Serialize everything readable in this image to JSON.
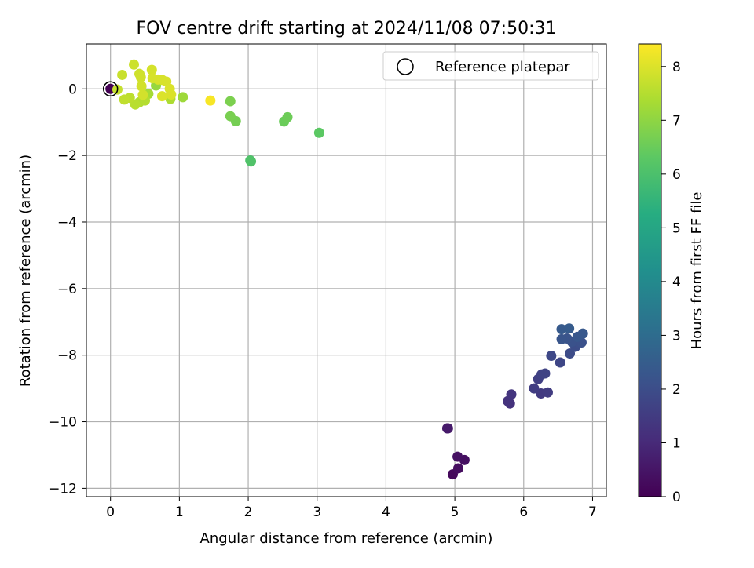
{
  "chart_data": {
    "type": "scatter",
    "title": "FOV centre drift starting at 2024/11/08 07:50:31",
    "xlabel": "Angular distance from reference (arcmin)",
    "ylabel": "Rotation from reference (arcmin)",
    "colorbar_label": "Hours from first FF file",
    "xlim": [
      -0.35,
      7.2
    ],
    "ylim": [
      -12.25,
      1.35
    ],
    "clim": [
      0,
      8.42
    ],
    "x_ticks": [
      0,
      1,
      2,
      3,
      4,
      5,
      6,
      7
    ],
    "y_ticks": [
      0,
      -2,
      -4,
      -6,
      -8,
      -10,
      -12
    ],
    "colorbar_ticks": [
      0,
      1,
      2,
      3,
      4,
      5,
      6,
      7,
      8
    ],
    "tick_labels": {
      "x": [
        "0",
        "1",
        "2",
        "3",
        "4",
        "5",
        "6",
        "7"
      ],
      "y": [
        "0",
        "−2",
        "−4",
        "−6",
        "−8",
        "−10",
        "−12"
      ],
      "colorbar": [
        "0",
        "1",
        "2",
        "3",
        "4",
        "5",
        "6",
        "7",
        "8"
      ]
    },
    "grid": true,
    "legend": {
      "position": "top-right",
      "label": "Reference platepar"
    },
    "colormap": "viridis",
    "reference_point": {
      "x": 0,
      "y": 0
    },
    "series": [
      {
        "points": [
          {
            "x": 0.0,
            "y": 0.0,
            "hours": 0.0
          },
          {
            "x": 4.97,
            "y": -11.58,
            "hours": 0.2
          },
          {
            "x": 5.05,
            "y": -11.4,
            "hours": 0.3
          },
          {
            "x": 5.14,
            "y": -11.15,
            "hours": 0.35
          },
          {
            "x": 5.04,
            "y": -11.05,
            "hours": 0.4
          },
          {
            "x": 4.9,
            "y": -10.2,
            "hours": 0.55
          },
          {
            "x": 4.89,
            "y": -10.2,
            "hours": 0.6
          },
          {
            "x": 5.8,
            "y": -9.45,
            "hours": 1.2
          },
          {
            "x": 5.77,
            "y": -9.38,
            "hours": 1.25
          },
          {
            "x": 5.82,
            "y": -9.18,
            "hours": 1.3
          },
          {
            "x": 6.25,
            "y": -9.15,
            "hours": 1.45
          },
          {
            "x": 6.35,
            "y": -9.12,
            "hours": 1.5
          },
          {
            "x": 6.15,
            "y": -9.0,
            "hours": 1.55
          },
          {
            "x": 6.21,
            "y": -8.72,
            "hours": 1.6
          },
          {
            "x": 6.26,
            "y": -8.58,
            "hours": 1.65
          },
          {
            "x": 6.31,
            "y": -8.55,
            "hours": 1.7
          },
          {
            "x": 6.53,
            "y": -8.22,
            "hours": 1.8
          },
          {
            "x": 6.4,
            "y": -8.02,
            "hours": 1.85
          },
          {
            "x": 6.67,
            "y": -7.95,
            "hours": 1.95
          },
          {
            "x": 6.75,
            "y": -7.75,
            "hours": 2.0
          },
          {
            "x": 6.8,
            "y": -7.62,
            "hours": 2.05
          },
          {
            "x": 6.84,
            "y": -7.62,
            "hours": 2.1
          },
          {
            "x": 6.7,
            "y": -7.6,
            "hours": 2.15
          },
          {
            "x": 6.63,
            "y": -7.5,
            "hours": 2.2
          },
          {
            "x": 6.55,
            "y": -7.52,
            "hours": 2.25
          },
          {
            "x": 6.78,
            "y": -7.45,
            "hours": 2.3
          },
          {
            "x": 6.86,
            "y": -7.35,
            "hours": 2.35
          },
          {
            "x": 6.55,
            "y": -7.22,
            "hours": 2.4
          },
          {
            "x": 6.66,
            "y": -7.2,
            "hours": 2.45
          },
          {
            "x": 2.03,
            "y": -2.15,
            "hours": 6.05
          },
          {
            "x": 2.04,
            "y": -2.18,
            "hours": 6.1
          },
          {
            "x": 3.03,
            "y": -1.32,
            "hours": 6.3
          },
          {
            "x": 2.52,
            "y": -0.98,
            "hours": 6.5
          },
          {
            "x": 2.57,
            "y": -0.85,
            "hours": 6.55
          },
          {
            "x": 1.82,
            "y": -0.97,
            "hours": 6.65
          },
          {
            "x": 1.74,
            "y": -0.82,
            "hours": 6.7
          },
          {
            "x": 1.74,
            "y": -0.37,
            "hours": 6.75
          },
          {
            "x": 0.66,
            "y": 0.1,
            "hours": 7.1
          },
          {
            "x": 1.05,
            "y": -0.25,
            "hours": 7.2
          },
          {
            "x": 0.55,
            "y": -0.15,
            "hours": 7.3
          },
          {
            "x": 0.87,
            "y": -0.3,
            "hours": 7.4
          },
          {
            "x": 0.42,
            "y": -0.4,
            "hours": 7.45
          },
          {
            "x": 0.5,
            "y": -0.35,
            "hours": 7.5
          },
          {
            "x": 0.36,
            "y": -0.47,
            "hours": 7.55
          },
          {
            "x": 0.28,
            "y": -0.27,
            "hours": 7.6
          },
          {
            "x": 0.2,
            "y": -0.32,
            "hours": 7.65
          },
          {
            "x": 0.1,
            "y": -0.02,
            "hours": 7.7
          },
          {
            "x": 0.17,
            "y": 0.42,
            "hours": 7.75
          },
          {
            "x": 0.34,
            "y": 0.73,
            "hours": 7.8
          },
          {
            "x": 0.42,
            "y": 0.45,
            "hours": 7.82
          },
          {
            "x": 0.44,
            "y": 0.35,
            "hours": 7.85
          },
          {
            "x": 0.45,
            "y": 0.08,
            "hours": 7.87
          },
          {
            "x": 0.47,
            "y": -0.18,
            "hours": 7.88
          },
          {
            "x": 0.6,
            "y": 0.57,
            "hours": 7.9
          },
          {
            "x": 0.61,
            "y": 0.32,
            "hours": 7.92
          },
          {
            "x": 0.69,
            "y": 0.28,
            "hours": 7.93
          },
          {
            "x": 0.75,
            "y": 0.27,
            "hours": 7.94
          },
          {
            "x": 0.81,
            "y": 0.22,
            "hours": 7.95
          },
          {
            "x": 0.86,
            "y": 0.0,
            "hours": 7.97
          },
          {
            "x": 0.88,
            "y": -0.17,
            "hours": 7.98
          },
          {
            "x": 0.75,
            "y": -0.22,
            "hours": 7.99
          },
          {
            "x": 1.45,
            "y": -0.35,
            "hours": 8.35
          }
        ]
      }
    ]
  }
}
